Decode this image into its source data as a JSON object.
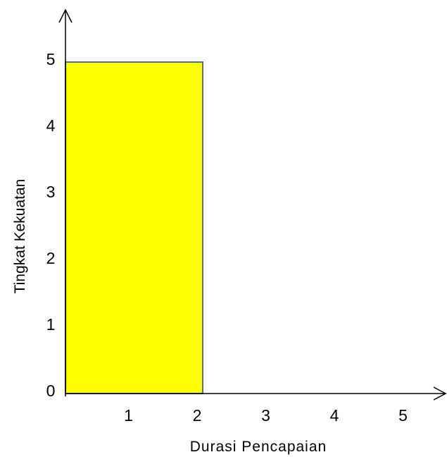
{
  "chart_data": {
    "type": "bar",
    "xlabel": "Durasi Pencapaian",
    "ylabel": "Tingkat Kekuatan",
    "x_ticks": [
      "1",
      "2",
      "3",
      "4",
      "5"
    ],
    "y_ticks": [
      "0",
      "1",
      "2",
      "3",
      "4",
      "5"
    ],
    "xlim": [
      0,
      5
    ],
    "ylim": [
      0,
      5
    ],
    "bars": [
      {
        "x_start": 0,
        "x_end": 2,
        "value": 5
      }
    ],
    "grid": false,
    "legend": "none",
    "colors": {
      "bar_fill": "#ffff00",
      "bar_stroke": "#5a6b87",
      "axis": "#000000"
    }
  }
}
